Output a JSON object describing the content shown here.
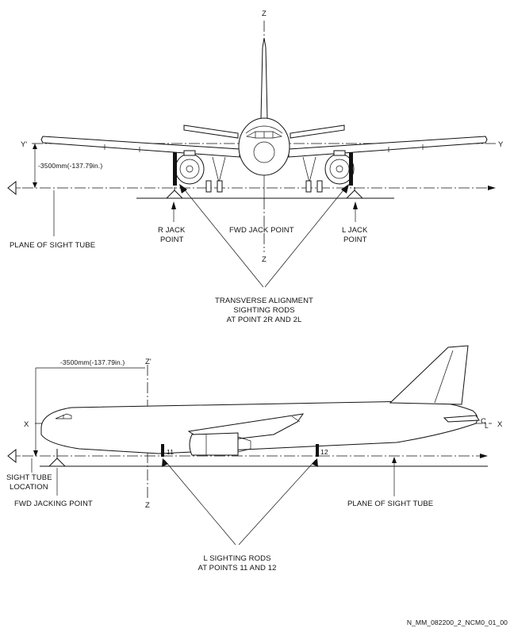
{
  "front_view": {
    "axis_z_top": "Z",
    "axis_y_left": "Y'",
    "axis_y_right": "Y",
    "dimension": "-3500mm(-137.79in.)",
    "plane_label": "PLANE OF SIGHT TUBE",
    "r_jack": [
      "R JACK",
      "POINT"
    ],
    "fwd_jack": "FWD JACK POINT",
    "l_jack": [
      "L JACK",
      "POINT"
    ],
    "axis_z_bottom": "Z",
    "rods_label": [
      "TRANSVERSE ALIGNMENT",
      "SIGHTING RODS",
      "AT POINT 2R AND 2L"
    ]
  },
  "side_view": {
    "dimension": "-3500mm(-137.79in.)",
    "axis_z_top": "Z'",
    "axis_x_left": "X",
    "axis_x_right": "X",
    "centerline": "C",
    "centerline_sub": "L",
    "rod_11": "11",
    "rod_12": "12",
    "sight_tube": [
      "SIGHT TUBE",
      "LOCATION"
    ],
    "fwd_jacking": "FWD JACKING POINT",
    "axis_z_bottom": "Z",
    "plane_label": "PLANE OF SIGHT TUBE",
    "rods_label": [
      "L SIGHTING RODS",
      "AT POINTS 11 AND 12"
    ]
  },
  "figure_id": "N_MM_082200_2_NCM0_01_00"
}
